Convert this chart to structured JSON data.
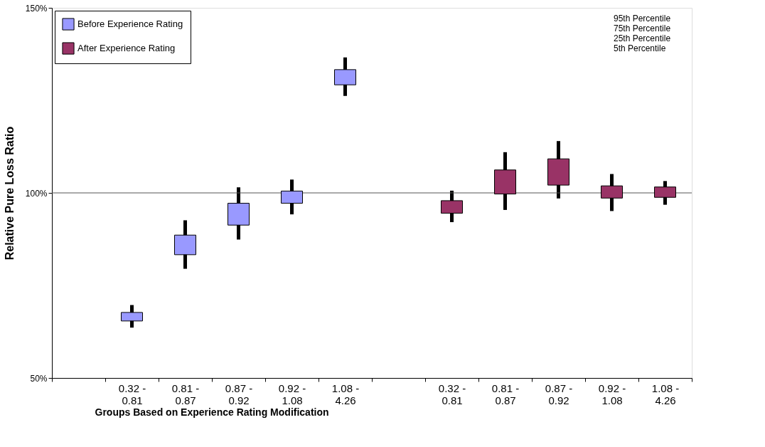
{
  "chart_data": {
    "type": "box",
    "xlabel": "Groups Based on Experience Rating Modification",
    "ylabel": "Relative Pure Loss Ratio",
    "categories": [
      null,
      "0.32 -\n0.81",
      "0.81 -\n0.87",
      "0.87 -\n0.92",
      "0.92 -\n1.08",
      "1.08 -\n4.26",
      null,
      "0.32 -\n0.81",
      "0.81 -\n0.87",
      "0.87 -\n0.92",
      "0.92 -\n1.08",
      "1.08 -\n4.26"
    ],
    "series": [
      {
        "name": "Before Experience Rating",
        "color": "#9999ff",
        "boxes": [
          null,
          {
            "low": 63.6,
            "q1": 65.4,
            "q3": 67.7,
            "high": 69.7
          },
          {
            "low": 79.5,
            "q1": 83.3,
            "q3": 88.6,
            "high": 92.6
          },
          {
            "low": 87.4,
            "q1": 91.3,
            "q3": 97.2,
            "high": 101.5
          },
          {
            "low": 94.2,
            "q1": 97.2,
            "q3": 100.5,
            "high": 103.6
          },
          {
            "low": 126.2,
            "q1": 129.2,
            "q3": 133.3,
            "high": 136.6
          },
          null,
          null,
          null,
          null,
          null,
          null
        ]
      },
      {
        "name": "After Experience Rating",
        "color": "#993366",
        "boxes": [
          null,
          null,
          null,
          null,
          null,
          null,
          null,
          {
            "low": 92.1,
            "q1": 94.5,
            "q3": 97.9,
            "high": 100.6
          },
          {
            "low": 95.4,
            "q1": 99.7,
            "q3": 106.2,
            "high": 111.0
          },
          {
            "low": 98.5,
            "q1": 102.1,
            "q3": 109.2,
            "high": 114.0
          },
          {
            "low": 95.1,
            "q1": 98.6,
            "q3": 101.9,
            "high": 105.1
          },
          {
            "low": 96.8,
            "q1": 98.8,
            "q3": 101.6,
            "high": 103.2
          }
        ]
      }
    ],
    "ylim": [
      50,
      150
    ],
    "yticks": [
      {
        "value": 50,
        "label": "50%"
      },
      {
        "value": 100,
        "label": "100%"
      },
      {
        "value": 150,
        "label": "150%"
      }
    ],
    "ref_lines": [
      {
        "axis": "y",
        "value": 100,
        "color": "#555555"
      }
    ],
    "annotations": [
      "95th Percentile",
      "75th Percentile",
      "25th Percentile",
      "5th Percentile"
    ],
    "legend": "top left",
    "grid": false
  }
}
